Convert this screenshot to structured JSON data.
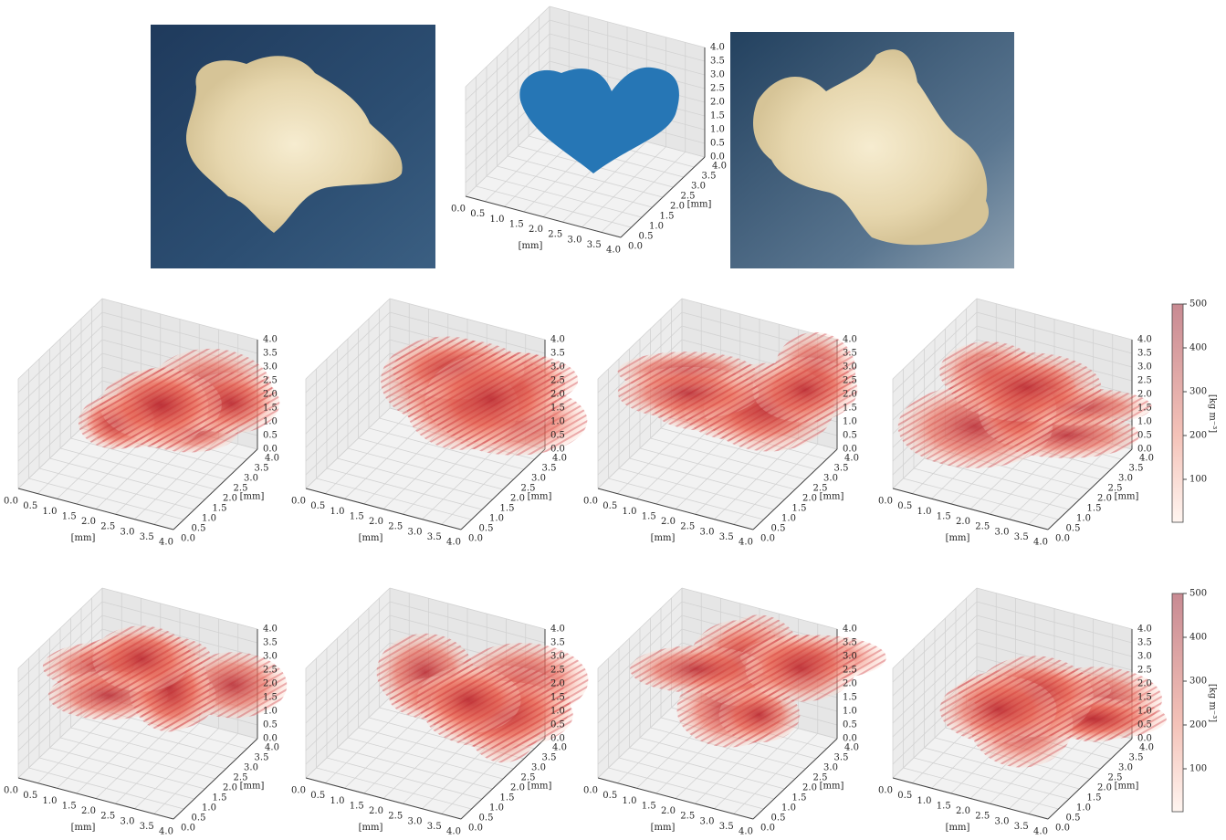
{
  "axes": {
    "ticks": [
      "0.0",
      "0.5",
      "1.0",
      "1.5",
      "2.0",
      "2.5",
      "3.0",
      "3.5",
      "4.0"
    ],
    "axis_label": "[mm]"
  },
  "colorbar": {
    "ticks": [
      100,
      200,
      300,
      400,
      500
    ],
    "label": "[kg m⁻³]"
  }
}
